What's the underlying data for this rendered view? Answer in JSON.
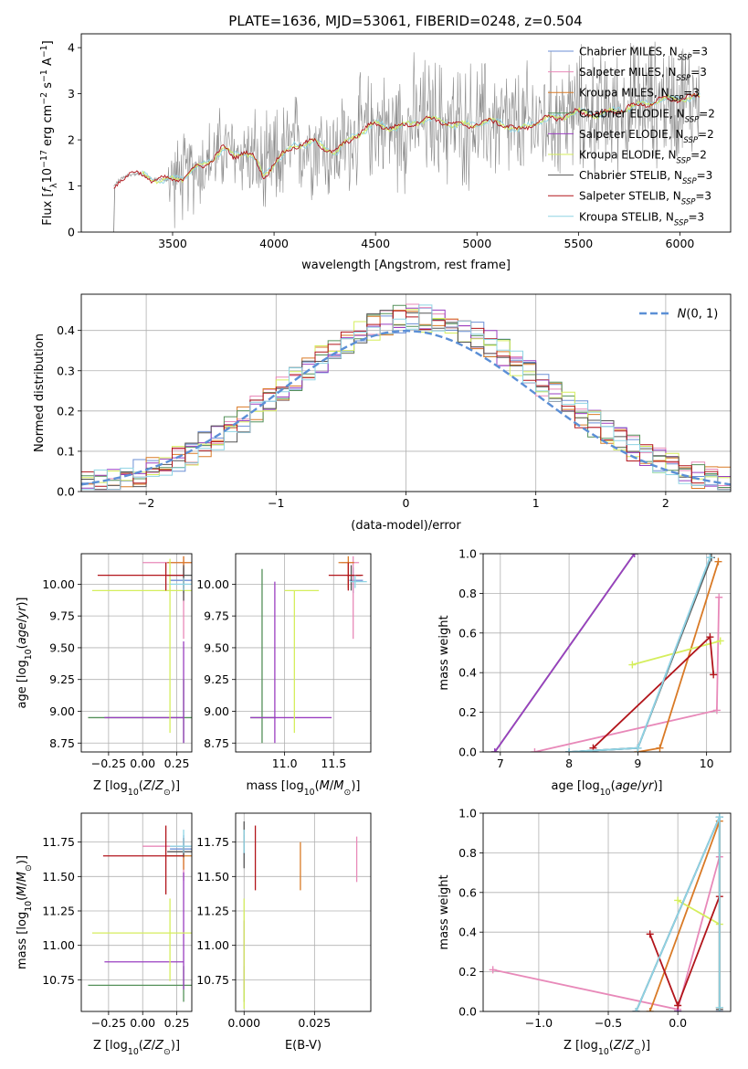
{
  "figure": {
    "title": "PLATE=1636, MJD=53061, FIBERID=0248, z=0.504"
  },
  "colors": {
    "Chabrier MILES": "#6b8fd6",
    "Salpeter MILES": "#e889b9",
    "Kroupa MILES": "#d97a26",
    "Chabrier ELODIE": "#55915a",
    "Salpeter ELODIE": "#9a3fc0",
    "Kroupa ELODIE": "#d5ee5d",
    "Chabrier STELIB": "#555555",
    "Salpeter STELIB": "#b2151b",
    "Kroupa STELIB": "#8fd4e4",
    "data": "#7f7f7f",
    "normal": "#5b8fd6"
  },
  "chart_data": [
    {
      "id": "spectrum",
      "type": "line",
      "xlabel": "wavelength [Angstrom, rest frame]",
      "ylabel": "Flux [f_λ 10^-17 erg cm^-2 s^-1 A^-1]",
      "xlim": [
        3050,
        6250
      ],
      "ylim": [
        0,
        4.3
      ],
      "xticks": [
        3500,
        4000,
        4500,
        5000,
        5500,
        6000
      ],
      "yticks": [
        0,
        1,
        2,
        3,
        4
      ],
      "legend_position": "top-right",
      "legend": [
        {
          "name": "Chabrier MILES",
          "sub": "SSP",
          "n": 3
        },
        {
          "name": "Salpeter MILES",
          "sub": "SSP",
          "n": 3
        },
        {
          "name": "Kroupa MILES",
          "sub": "SSP",
          "n": 3
        },
        {
          "name": "Chabrier ELODIE",
          "sub": "SSP",
          "n": 2
        },
        {
          "name": "Salpeter ELODIE",
          "sub": "SSP",
          "n": 2
        },
        {
          "name": "Kroupa ELODIE",
          "sub": "SSP",
          "n": 2
        },
        {
          "name": "Chabrier STELIB",
          "sub": "SSP",
          "n": 3
        },
        {
          "name": "Salpeter STELIB",
          "sub": "SSP",
          "n": 3
        },
        {
          "name": "Kroupa STELIB",
          "sub": "SSP",
          "n": 3
        }
      ],
      "data_range": [
        3210,
        6100
      ],
      "model_shape": [
        [
          3210,
          0.98
        ],
        [
          3230,
          1.1
        ],
        [
          3260,
          1.2
        ],
        [
          3300,
          1.26
        ],
        [
          3350,
          1.25
        ],
        [
          3400,
          1.15
        ],
        [
          3450,
          1.13
        ],
        [
          3500,
          1.14
        ],
        [
          3550,
          1.18
        ],
        [
          3600,
          1.35
        ],
        [
          3650,
          1.45
        ],
        [
          3700,
          1.6
        ],
        [
          3750,
          1.82
        ],
        [
          3800,
          1.65
        ],
        [
          3850,
          1.75
        ],
        [
          3900,
          1.6
        ],
        [
          3950,
          1.2
        ],
        [
          4000,
          1.5
        ],
        [
          4100,
          1.88
        ],
        [
          4200,
          1.95
        ],
        [
          4300,
          1.72
        ],
        [
          4400,
          2.1
        ],
        [
          4500,
          2.35
        ],
        [
          4600,
          2.25
        ],
        [
          4700,
          2.4
        ],
        [
          4800,
          2.45
        ],
        [
          4900,
          2.3
        ],
        [
          5000,
          2.35
        ],
        [
          5100,
          2.4
        ],
        [
          5200,
          2.2
        ],
        [
          5300,
          2.4
        ],
        [
          5400,
          2.5
        ],
        [
          5500,
          2.6
        ],
        [
          5600,
          2.55
        ],
        [
          5700,
          2.65
        ],
        [
          5800,
          2.75
        ],
        [
          5900,
          2.85
        ],
        [
          6000,
          2.9
        ],
        [
          6100,
          2.92
        ]
      ]
    },
    {
      "id": "residuals",
      "type": "line",
      "xlabel": "(data-model)/error",
      "ylabel": "Normed distribution",
      "xlim": [
        -2.5,
        2.5
      ],
      "ylim": [
        0,
        0.49
      ],
      "xticks": [
        -2,
        -1,
        0,
        1,
        2
      ],
      "yticks": [
        0,
        0.1,
        0.2,
        0.3,
        0.4
      ],
      "legend_position": "top-right",
      "legend": [
        {
          "name": "N(0,1)"
        }
      ],
      "hist_bin_width": 0.1
    },
    {
      "id": "age-vs-Z",
      "type": "scatter",
      "xlabel": "Z [log10(Z/Z⊙)]",
      "ylabel": "age  [log10(age/yr)]",
      "xlim": [
        -0.45,
        0.36
      ],
      "ylim": [
        8.68,
        10.24
      ],
      "xticks": [
        -0.25,
        0.0,
        0.25
      ],
      "yticks": [
        8.75,
        9.0,
        9.25,
        9.5,
        9.75,
        10.0
      ],
      "points": [
        {
          "s": "Chabrier MILES",
          "x": 0.3,
          "y": 10.03,
          "xerr": [
            0.1,
            0.06
          ],
          "yerr": [
            0.1,
            0.1
          ]
        },
        {
          "s": "Salpeter MILES",
          "x": 0.3,
          "y": 10.17,
          "xerr": [
            0.3,
            0.06
          ],
          "yerr": [
            0.6,
            0.05
          ]
        },
        {
          "s": "Kroupa MILES",
          "x": 0.3,
          "y": 10.17,
          "xerr": [
            0.12,
            0.06
          ],
          "yerr": [
            0.2,
            0.05
          ]
        },
        {
          "s": "Chabrier ELODIE",
          "x": 0.3,
          "y": 8.95,
          "xerr": [
            0.7,
            0.06
          ],
          "yerr": [
            0.2,
            0.3
          ]
        },
        {
          "s": "Salpeter ELODIE",
          "x": 0.3,
          "y": 8.95,
          "xerr": [
            0.58,
            0.0
          ],
          "yerr": [
            0.2,
            0.6
          ]
        },
        {
          "s": "Kroupa ELODIE",
          "x": 0.2,
          "y": 9.95,
          "xerr": [
            0.57,
            0.16
          ],
          "yerr": [
            1.12,
            0.25
          ]
        },
        {
          "s": "Chabrier STELIB",
          "x": 0.3,
          "y": 10.07,
          "xerr": [
            0.12,
            0.06
          ],
          "yerr": [
            0.2,
            0.08
          ]
        },
        {
          "s": "Salpeter STELIB",
          "x": 0.17,
          "y": 10.07,
          "xerr": [
            0.5,
            0.13
          ],
          "yerr": [
            0.12,
            0.1
          ]
        },
        {
          "s": "Kroupa STELIB",
          "x": 0.3,
          "y": 10.0,
          "xerr": [
            0.1,
            0.06
          ],
          "yerr": [
            0.05,
            0.05
          ]
        }
      ]
    },
    {
      "id": "age-vs-mass",
      "type": "scatter",
      "xlabel": "mass [log10(M/M⊙)]",
      "ylabel": "",
      "xlim": [
        10.5,
        11.88
      ],
      "ylim": [
        8.68,
        10.24
      ],
      "xticks": [
        11.0,
        11.5
      ],
      "yticks": [
        8.75,
        9.0,
        9.25,
        9.5,
        9.75,
        10.0
      ],
      "points": [
        {
          "s": "Chabrier MILES",
          "x": 11.7,
          "y": 10.03,
          "xerr": [
            0.04,
            0.1
          ],
          "yerr": [
            0.1,
            0.1
          ]
        },
        {
          "s": "Salpeter MILES",
          "x": 11.7,
          "y": 10.17,
          "xerr": [
            0.12,
            0.06
          ],
          "yerr": [
            0.6,
            0.05
          ]
        },
        {
          "s": "Kroupa MILES",
          "x": 11.65,
          "y": 10.17,
          "xerr": [
            0.1,
            0.06
          ],
          "yerr": [
            0.2,
            0.05
          ]
        },
        {
          "s": "Chabrier ELODIE",
          "x": 10.77,
          "y": 8.95,
          "xerr": [
            0.12,
            0.14
          ],
          "yerr": [
            0.2,
            1.17
          ]
        },
        {
          "s": "Salpeter ELODIE",
          "x": 10.9,
          "y": 8.95,
          "xerr": [
            0.25,
            0.58
          ],
          "yerr": [
            0.2,
            1.07
          ]
        },
        {
          "s": "Kroupa ELODIE",
          "x": 11.1,
          "y": 9.95,
          "xerr": [
            0.1,
            0.25
          ],
          "yerr": [
            1.12,
            0.0
          ]
        },
        {
          "s": "Chabrier STELIB",
          "x": 11.68,
          "y": 10.07,
          "xerr": [
            0.04,
            0.1
          ],
          "yerr": [
            0.12,
            0.08
          ]
        },
        {
          "s": "Salpeter STELIB",
          "x": 11.65,
          "y": 10.07,
          "xerr": [
            0.2,
            0.15
          ],
          "yerr": [
            0.12,
            0.1
          ]
        },
        {
          "s": "Kroupa STELIB",
          "x": 11.72,
          "y": 10.02,
          "xerr": [
            0.05,
            0.12
          ],
          "yerr": [
            0.05,
            0.05
          ]
        }
      ]
    },
    {
      "id": "mass-weight-vs-age",
      "type": "line",
      "xlabel": "age  [log10(age/yr)]",
      "ylabel": "mass weight",
      "xlim": [
        6.75,
        10.35
      ],
      "ylim": [
        0,
        1.0
      ],
      "xticks": [
        7,
        8,
        9,
        10
      ],
      "yticks": [
        0.0,
        0.2,
        0.4,
        0.6,
        0.8,
        1.0
      ],
      "series": [
        {
          "s": "Chabrier MILES",
          "points": [
            [
              8.0,
              0.0
            ],
            [
              9.0,
              0.02
            ],
            [
              10.05,
              0.98
            ]
          ]
        },
        {
          "s": "Salpeter MILES",
          "points": [
            [
              7.5,
              0.0
            ],
            [
              10.15,
              0.21
            ],
            [
              10.18,
              0.78
            ]
          ]
        },
        {
          "s": "Kroupa MILES",
          "points": [
            [
              9.0,
              0.0
            ],
            [
              9.32,
              0.02
            ],
            [
              10.17,
              0.96
            ]
          ]
        },
        {
          "s": "Chabrier ELODIE",
          "points": [
            [
              6.92,
              0.0
            ],
            [
              8.95,
              1.0
            ]
          ]
        },
        {
          "s": "Salpeter ELODIE",
          "points": [
            [
              6.92,
              0.0
            ],
            [
              8.95,
              1.0
            ]
          ]
        },
        {
          "s": "Kroupa ELODIE",
          "points": [
            [
              8.92,
              0.44
            ],
            [
              10.2,
              0.56
            ]
          ]
        },
        {
          "s": "Chabrier STELIB",
          "points": [
            [
              8.0,
              0.0
            ],
            [
              9.0,
              0.02
            ],
            [
              10.07,
              0.98
            ]
          ]
        },
        {
          "s": "Salpeter STELIB",
          "points": [
            [
              8.35,
              0.02
            ],
            [
              10.05,
              0.58
            ],
            [
              10.1,
              0.39
            ]
          ]
        },
        {
          "s": "Kroupa STELIB",
          "points": [
            [
              8.0,
              0.0
            ],
            [
              9.0,
              0.02
            ],
            [
              10.05,
              0.98
            ]
          ]
        }
      ]
    },
    {
      "id": "mass-vs-Z",
      "type": "scatter",
      "xlabel": "Z [log10(Z/Z⊙)]",
      "ylabel": "mass [log10(M/M⊙)]",
      "xlim": [
        -0.45,
        0.36
      ],
      "ylim": [
        10.52,
        11.96
      ],
      "xticks": [
        -0.25,
        0.0,
        0.25
      ],
      "yticks": [
        10.75,
        11.0,
        11.25,
        11.5,
        11.75
      ],
      "points": [
        {
          "s": "Chabrier MILES",
          "x": 0.3,
          "y": 11.7,
          "xerr": [
            0.1,
            0.06
          ],
          "yerr": [
            0.04,
            0.1
          ]
        },
        {
          "s": "Salpeter MILES",
          "x": 0.3,
          "y": 11.72,
          "xerr": [
            0.3,
            0.06
          ],
          "yerr": [
            0.25,
            0.06
          ]
        },
        {
          "s": "Kroupa MILES",
          "x": 0.3,
          "y": 11.65,
          "xerr": [
            0.12,
            0.06
          ],
          "yerr": [
            0.1,
            0.06
          ]
        },
        {
          "s": "Chabrier ELODIE",
          "x": 0.3,
          "y": 10.71,
          "xerr": [
            0.7,
            0.06
          ],
          "yerr": [
            0.12,
            0.14
          ]
        },
        {
          "s": "Salpeter ELODIE",
          "x": 0.3,
          "y": 10.88,
          "xerr": [
            0.58,
            0.0
          ],
          "yerr": [
            0.2,
            0.65
          ]
        },
        {
          "s": "Kroupa ELODIE",
          "x": 0.2,
          "y": 11.09,
          "xerr": [
            0.57,
            0.16
          ],
          "yerr": [
            0.35,
            0.25
          ]
        },
        {
          "s": "Chabrier STELIB",
          "x": 0.3,
          "y": 11.68,
          "xerr": [
            0.12,
            0.06
          ],
          "yerr": [
            0.04,
            0.1
          ]
        },
        {
          "s": "Salpeter STELIB",
          "x": 0.17,
          "y": 11.65,
          "xerr": [
            0.46,
            0.13
          ],
          "yerr": [
            0.28,
            0.22
          ]
        },
        {
          "s": "Kroupa STELIB",
          "x": 0.3,
          "y": 11.72,
          "xerr": [
            0.1,
            0.06
          ],
          "yerr": [
            0.05,
            0.12
          ]
        }
      ]
    },
    {
      "id": "mass-vs-EBV",
      "type": "scatter",
      "xlabel": "E(B-V)",
      "ylabel": "",
      "xlim": [
        -0.003,
        0.045
      ],
      "ylim": [
        10.52,
        11.96
      ],
      "xticks": [
        0.0,
        0.025
      ],
      "yticks": [
        10.75,
        11.0,
        11.25,
        11.5,
        11.75
      ],
      "points": [
        {
          "s": "Chabrier MILES",
          "x": 0.0,
          "y": 11.7,
          "yerr": [
            0.04,
            0.1
          ]
        },
        {
          "s": "Salpeter MILES",
          "x": 0.04,
          "y": 11.62,
          "yerr": [
            0.16,
            0.17
          ]
        },
        {
          "s": "Kroupa MILES",
          "x": 0.02,
          "y": 11.55,
          "yerr": [
            0.15,
            0.2
          ]
        },
        {
          "s": "Chabrier ELODIE",
          "x": 0.0,
          "y": 10.71,
          "yerr": [
            0.12,
            0.14
          ]
        },
        {
          "s": "Salpeter ELODIE",
          "x": 0.0,
          "y": 10.88,
          "yerr": [
            0.2,
            0.3
          ]
        },
        {
          "s": "Kroupa ELODIE",
          "x": 0.0,
          "y": 11.09,
          "yerr": [
            0.55,
            0.25
          ]
        },
        {
          "s": "Chabrier STELIB",
          "x": 0.0,
          "y": 11.68,
          "yerr": [
            0.12,
            0.22
          ]
        },
        {
          "s": "Salpeter STELIB",
          "x": 0.004,
          "y": 11.65,
          "yerr": [
            0.25,
            0.22
          ]
        },
        {
          "s": "Kroupa STELIB",
          "x": 0.0,
          "y": 11.72,
          "yerr": [
            0.05,
            0.12
          ]
        }
      ]
    },
    {
      "id": "mass-weight-vs-Z",
      "type": "line",
      "xlabel": "Z [log10(Z/Z⊙)]",
      "ylabel": "mass weight",
      "xlim": [
        -1.4,
        0.38
      ],
      "ylim": [
        0,
        1.0
      ],
      "xticks": [
        -1.0,
        -0.5,
        0.0
      ],
      "yticks": [
        0.0,
        0.2,
        0.4,
        0.6,
        0.8,
        1.0
      ],
      "series": [
        {
          "s": "Chabrier MILES",
          "points": [
            [
              -0.3,
              0.0
            ],
            [
              0.3,
              0.98
            ],
            [
              0.3,
              0.0
            ]
          ]
        },
        {
          "s": "Salpeter MILES",
          "points": [
            [
              -1.33,
              0.21
            ],
            [
              0.0,
              0.01
            ],
            [
              0.3,
              0.78
            ]
          ]
        },
        {
          "s": "Kroupa MILES",
          "points": [
            [
              -0.2,
              0.0
            ],
            [
              0.3,
              0.96
            ],
            [
              0.3,
              0.02
            ]
          ]
        },
        {
          "s": "Chabrier ELODIE",
          "points": [
            [
              0.0,
              0.0
            ],
            [
              0.0,
              0.0
            ]
          ]
        },
        {
          "s": "Salpeter ELODIE",
          "points": [
            [
              0.0,
              0.0
            ],
            [
              0.0,
              0.0
            ]
          ]
        },
        {
          "s": "Kroupa ELODIE",
          "points": [
            [
              0.0,
              0.56
            ],
            [
              0.3,
              0.44
            ]
          ]
        },
        {
          "s": "Chabrier STELIB",
          "points": [
            [
              -0.3,
              0.0
            ],
            [
              0.3,
              0.98
            ],
            [
              0.3,
              0.01
            ]
          ]
        },
        {
          "s": "Salpeter STELIB",
          "points": [
            [
              -0.2,
              0.39
            ],
            [
              0.0,
              0.03
            ],
            [
              0.3,
              0.58
            ]
          ]
        },
        {
          "s": "Kroupa STELIB",
          "points": [
            [
              -0.3,
              0.0
            ],
            [
              0.3,
              0.98
            ],
            [
              0.3,
              0.02
            ]
          ]
        }
      ]
    }
  ]
}
